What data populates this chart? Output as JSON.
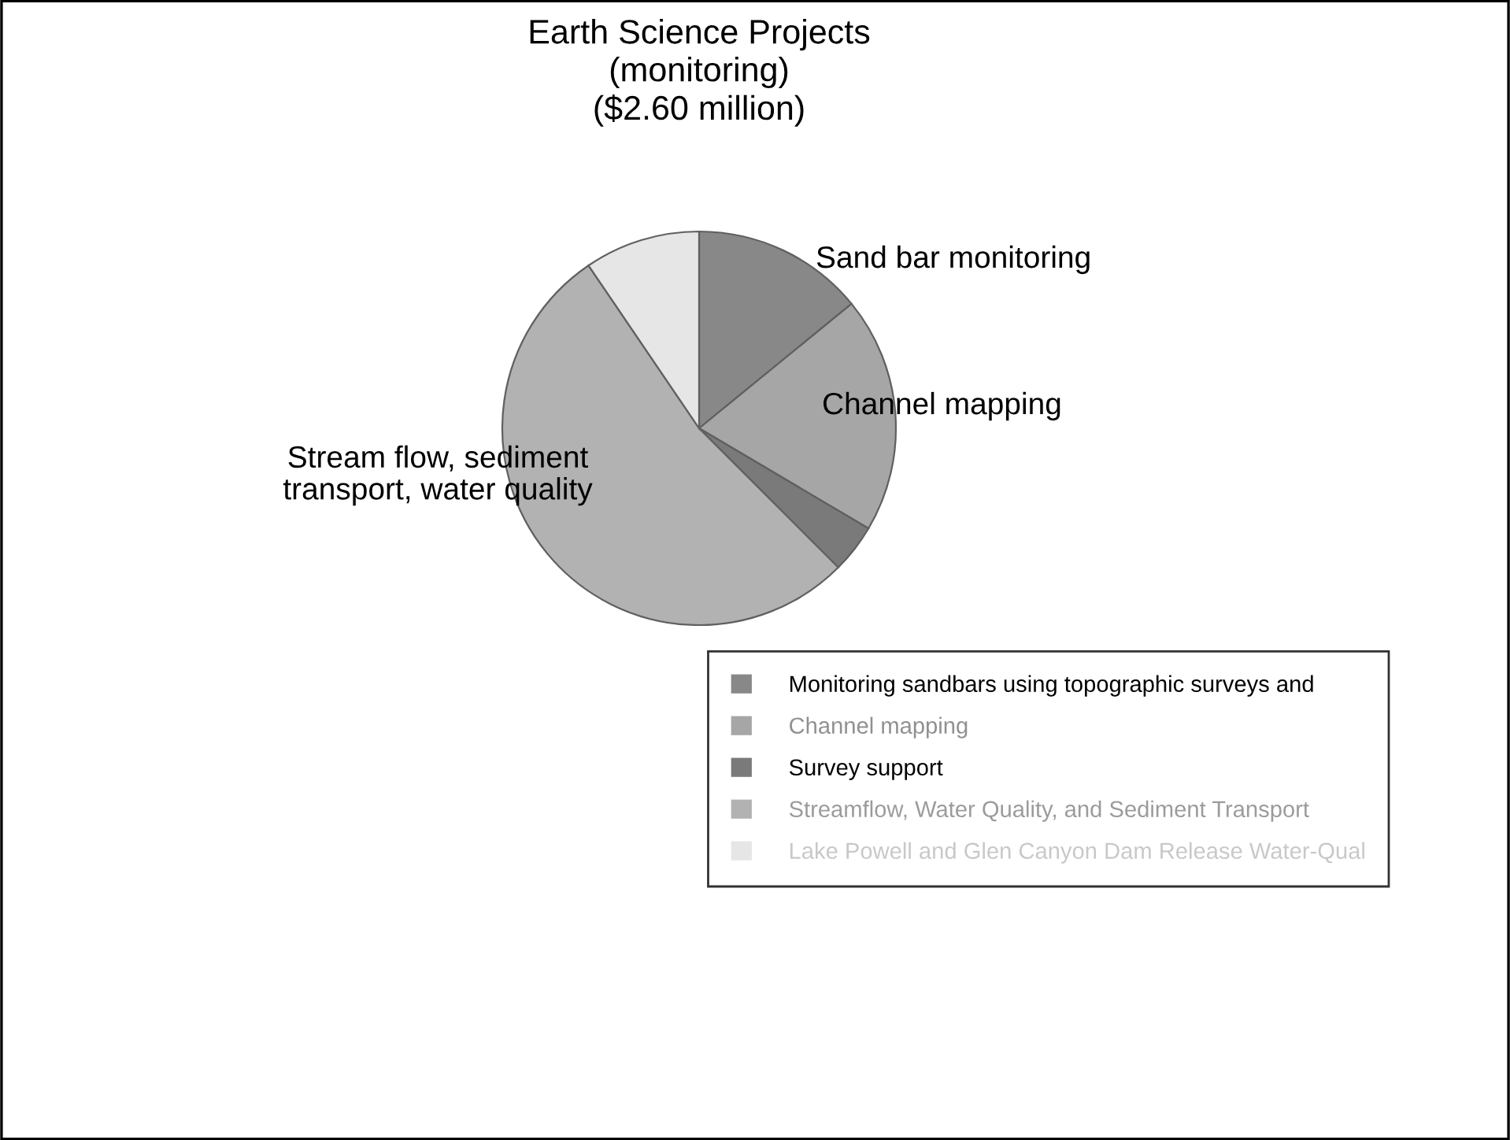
{
  "chart_data": {
    "type": "pie",
    "title": "Earth Science Projects\n(monitoring)\n($2.60 million)",
    "categories": [
      "Monitoring sandbars using topographic surveys and",
      "Channel mapping",
      "Survey support",
      "Streamflow, Water Quality, and Sediment Transport",
      "Lake Powell and Glen Canyon Dam Release Water-Qual"
    ],
    "values": [
      14.1,
      19.4,
      4.0,
      53.0,
      9.5
    ],
    "colors": [
      "#888888",
      "#a6a6a6",
      "#7a7a7a",
      "#b2b2b2",
      "#e6e6e6"
    ],
    "annotations": [
      "Sand bar monitoring",
      "Channel mapping",
      "Stream flow, sediment\ntransport, water quality"
    ],
    "legend": "bottom right"
  }
}
